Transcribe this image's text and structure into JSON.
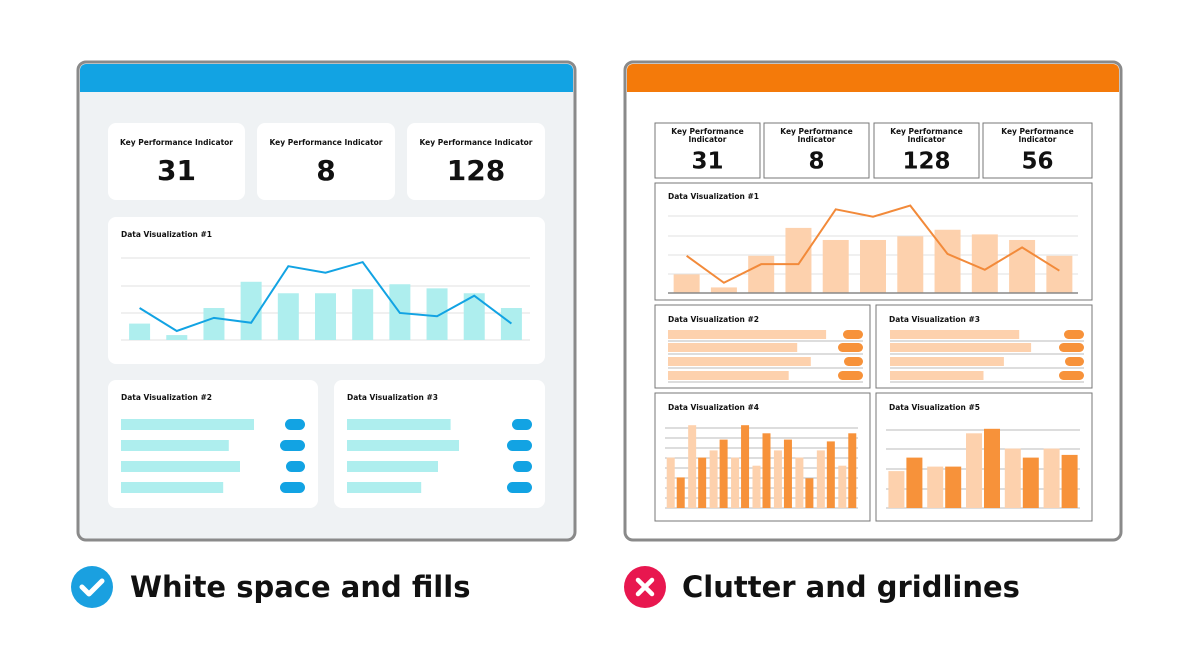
{
  "left": {
    "kpis": [
      {
        "label": "Key Performance Indicator",
        "value": 31
      },
      {
        "label": "Key Performance Indicator",
        "value": 8
      },
      {
        "label": "Key Performance Indicator",
        "value": 128
      }
    ],
    "viz1": {
      "title": "Data Visualization #1",
      "bars": [
        20,
        6,
        39,
        71,
        57,
        57,
        62,
        68,
        63,
        57,
        39
      ],
      "line": [
        39,
        11,
        27,
        21,
        90,
        82,
        95,
        33,
        29,
        54,
        20
      ]
    },
    "viz2": {
      "title": "Data Visualization #2",
      "bars": [
        95,
        77,
        85,
        73
      ]
    },
    "viz3": {
      "title": "Data Visualization #3",
      "bars": [
        74,
        80,
        65,
        53
      ]
    }
  },
  "right": {
    "kpis": [
      {
        "label": "Key Performance Indicator",
        "value": 31
      },
      {
        "label": "Key Performance Indicator",
        "value": 8
      },
      {
        "label": "Key Performance Indicator",
        "value": 128
      },
      {
        "label": "Key Performance Indicator",
        "value": 56
      }
    ],
    "viz1": {
      "title": "Data Visualization #1",
      "bars": [
        20,
        6,
        40,
        70,
        57,
        57,
        61,
        68,
        63,
        57,
        40
      ],
      "line": [
        40,
        11,
        31,
        31,
        90,
        82,
        94,
        42,
        25,
        49,
        24
      ]
    },
    "viz2": {
      "title": "Data Visualization #2",
      "bars": [
        93,
        76,
        84,
        71
      ]
    },
    "viz3": {
      "title": "Data Visualization #3",
      "bars": [
        76,
        83,
        67,
        55
      ]
    },
    "viz4": {
      "title": "Data Visualization #4",
      "light": [
        56,
        92,
        64,
        56,
        47,
        64,
        56,
        64,
        47
      ],
      "dark": [
        34,
        56,
        76,
        92,
        83,
        76,
        33,
        74,
        83
      ]
    },
    "viz5": {
      "title": "Data Visualization #5",
      "light": [
        41,
        46,
        83,
        66,
        66
      ],
      "dark": [
        56,
        46,
        88,
        56,
        59
      ]
    }
  },
  "captions": {
    "good": "White space and fills",
    "bad": "Clutter and gridlines"
  }
}
